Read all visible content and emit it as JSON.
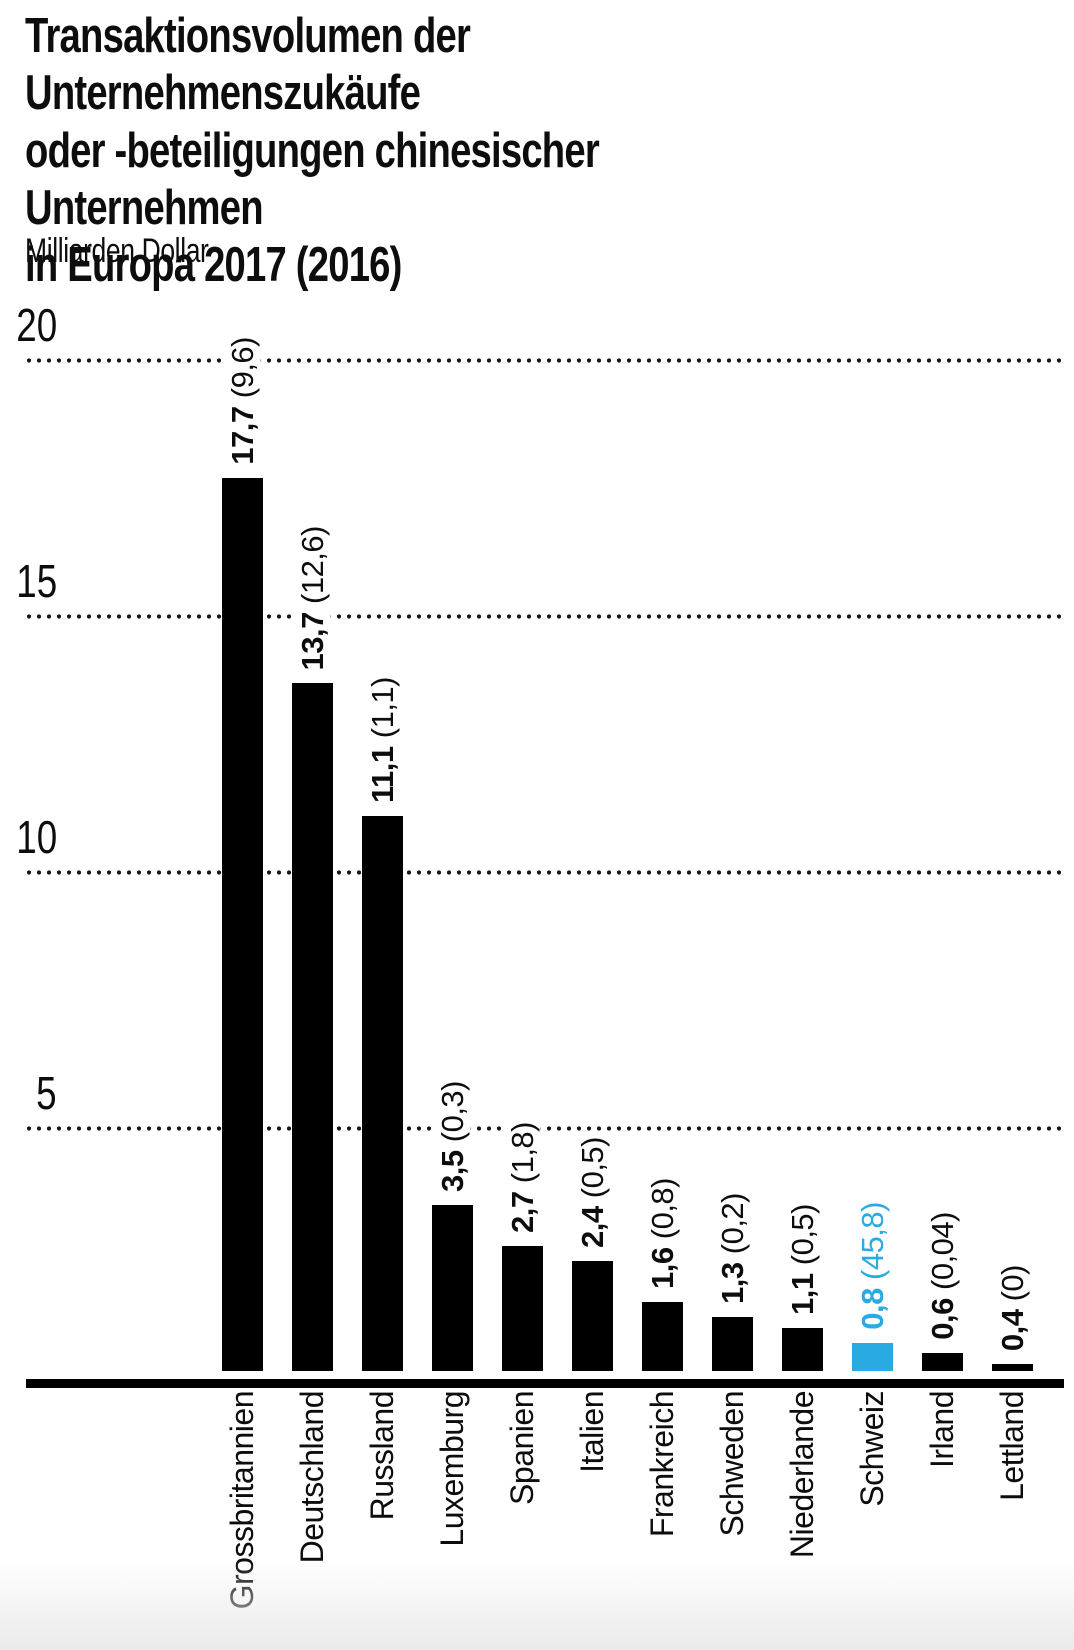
{
  "title": "Transaktionsvolumen der Unternehmenszukäufe\noder -beteiligungen chinesischer Unternehmen\nin Europa 2017 (2016)",
  "unit_label": "Milliarden Dollar",
  "colors": {
    "bar": "#000000",
    "highlight": "#29abe2",
    "text": "#0d0d0d",
    "grid": "#161616"
  },
  "chart_data": {
    "type": "bar",
    "title": "Transaktionsvolumen der Unternehmenszukäufe oder -beteiligungen chinesischer Unternehmen in Europa 2017 (2016)",
    "ylabel": "Milliarden Dollar",
    "ylim": [
      0,
      20
    ],
    "yticks": [
      20,
      15,
      10,
      5
    ],
    "grid": "horizontal-dotted",
    "legend_position": "none",
    "categories": [
      "Grossbritannien",
      "Deutschland",
      "Russland",
      "Luxemburg",
      "Spanien",
      "Italien",
      "Frankreich",
      "Schweden",
      "Niederlande",
      "Schweiz",
      "Irland",
      "Lettland"
    ],
    "series": [
      {
        "name": "2017",
        "values": [
          17.7,
          13.7,
          11.1,
          3.5,
          2.7,
          2.4,
          1.6,
          1.3,
          1.1,
          0.8,
          0.6,
          0.4
        ]
      },
      {
        "name": "2016",
        "values": [
          9.6,
          12.6,
          1.1,
          0.3,
          1.8,
          0.5,
          0.8,
          0.2,
          0.5,
          45.8,
          0.04,
          0
        ]
      }
    ],
    "bar_value_labels": [
      "17,7 (9,6)",
      "13,7 (12,6)",
      "11,1 (1,1)",
      "3,5 (0,3)",
      "2,7 (1,8)",
      "2,4 (0,5)",
      "1,6 (0,8)",
      "1,3 (0,2)",
      "1,1 (0,5)",
      "0,8 (45,8)",
      "0,6 (0,04)",
      "0,4 (0)"
    ],
    "highlight_index": 9,
    "highlight_color": "#29abe2",
    "bar_color": "#000000"
  }
}
